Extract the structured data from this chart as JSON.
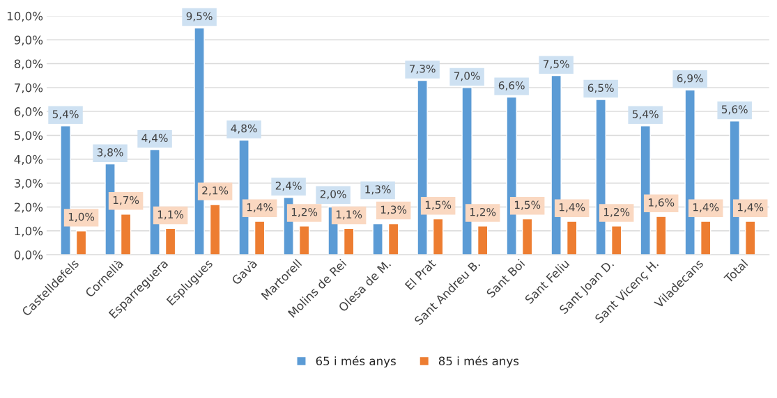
{
  "chart_data": {
    "type": "bar",
    "categories": [
      "Castelldefels",
      "Cornellà",
      "Esparreguera",
      "Esplugues",
      "Gavà",
      "Martorell",
      "Molins de Rei",
      "Olesa de M.",
      "El Prat",
      "Sant Andreu B.",
      "Sant Boi",
      "Sant Feliu",
      "Sant Joan D.",
      "Sant Vicenç H.",
      "Viladecans",
      "Total"
    ],
    "series": [
      {
        "name": "65 i més anys",
        "color": "#5b9bd5",
        "values": [
          5.4,
          3.8,
          4.4,
          9.5,
          4.8,
          2.4,
          2.0,
          1.3,
          7.3,
          7.0,
          6.6,
          7.5,
          6.5,
          5.4,
          6.9,
          5.6
        ],
        "value_labels": [
          "5,4%",
          "3,8%",
          "4,4%",
          "9,5%",
          "4,8%",
          "2,4%",
          "2,0%",
          "1,3%",
          "7,3%",
          "7,0%",
          "6,6%",
          "7,5%",
          "6,5%",
          "5,4%",
          "6,9%",
          "5,6%"
        ]
      },
      {
        "name": "85 i més anys",
        "color": "#ed7d31",
        "values": [
          1.0,
          1.7,
          1.1,
          2.1,
          1.4,
          1.2,
          1.1,
          1.3,
          1.5,
          1.2,
          1.5,
          1.4,
          1.2,
          1.6,
          1.4,
          1.4
        ],
        "value_labels": [
          "1,0%",
          "1,7%",
          "1,1%",
          "2,1%",
          "1,4%",
          "1,2%",
          "1,1%",
          "1,3%",
          "1,5%",
          "1,2%",
          "1,5%",
          "1,4%",
          "1,2%",
          "1,6%",
          "1,4%",
          "1,4%"
        ]
      }
    ],
    "ylim": [
      0,
      10
    ],
    "yticks": [
      {
        "value": 0,
        "label": "0,0%"
      },
      {
        "value": 1,
        "label": "1,0%"
      },
      {
        "value": 2,
        "label": "2,0%"
      },
      {
        "value": 3,
        "label": "3,0%"
      },
      {
        "value": 4,
        "label": "4,0%"
      },
      {
        "value": 5,
        "label": "5,0%"
      },
      {
        "value": 6,
        "label": "6,0%"
      },
      {
        "value": 7,
        "label": "7,0%"
      },
      {
        "value": 8,
        "label": "8,0%"
      },
      {
        "value": 9,
        "label": "9,0%"
      },
      {
        "value": 10,
        "label": "10,0%"
      }
    ],
    "grid": "y",
    "legend": "bottom"
  }
}
